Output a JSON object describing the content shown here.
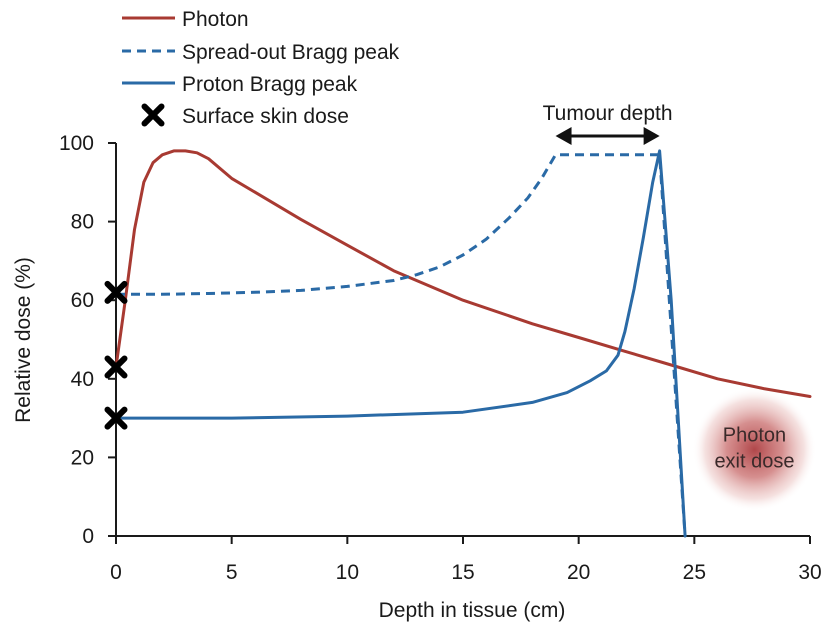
{
  "chart_data": {
    "type": "line",
    "xlabel": "Depth in tissue (cm)",
    "ylabel": "Relative dose (%)",
    "xlim": [
      0,
      30
    ],
    "ylim": [
      0,
      100
    ],
    "xticks": [
      0,
      5,
      10,
      15,
      20,
      25,
      30
    ],
    "yticks": [
      0,
      20,
      40,
      60,
      80,
      100
    ],
    "grid": false,
    "legend_position": "top-left",
    "series": [
      {
        "name": "Photon",
        "color": "#a83a32",
        "style": "solid",
        "x": [
          0,
          0.4,
          0.8,
          1.2,
          1.6,
          2.0,
          2.5,
          3.0,
          3.5,
          4.0,
          5.0,
          6.0,
          8.0,
          10.0,
          12.0,
          15.0,
          18.0,
          20.0,
          22.0,
          24.0,
          26.0,
          28.0,
          30.0
        ],
        "y": [
          43,
          60,
          78,
          90,
          95,
          97,
          98,
          98,
          97.5,
          96,
          91,
          87.5,
          80.5,
          74,
          67.5,
          60,
          54,
          50.5,
          47,
          43.5,
          40,
          37.5,
          35.5
        ]
      },
      {
        "name": "Spread-out Bragg peak",
        "color": "#2a6aa6",
        "style": "dashed",
        "x": [
          0,
          2,
          4,
          6,
          8,
          10,
          12,
          13,
          14,
          15,
          16,
          17,
          17.8,
          18.4,
          19.0,
          23.5,
          24.6
        ],
        "y": [
          61.5,
          61.5,
          61.7,
          62,
          62.5,
          63.5,
          65,
          66.5,
          68.5,
          71.5,
          75.5,
          81,
          86,
          91,
          97,
          97,
          0
        ]
      },
      {
        "name": "Proton Bragg peak",
        "color": "#2a6aa6",
        "style": "solid",
        "x": [
          0,
          5,
          10,
          15,
          18,
          19.5,
          20.5,
          21.2,
          21.7,
          22.0,
          22.4,
          22.8,
          23.2,
          23.5,
          24.0,
          24.6
        ],
        "y": [
          30,
          30,
          30.5,
          31.5,
          34,
          36.5,
          39.5,
          42,
          46,
          52,
          63,
          76,
          90,
          98,
          60,
          0
        ]
      }
    ],
    "surface_skin_dose": {
      "name": "Surface skin dose",
      "x": 0,
      "values": [
        62,
        43,
        30
      ]
    },
    "annotations": {
      "tumour_depth": {
        "label": "Tumour depth",
        "x_start": 19,
        "x_end": 23.5,
        "y": 104
      },
      "photon_exit_dose": {
        "line1": "Photon",
        "line2": "exit dose",
        "center_x": 27.6,
        "center_y": 22
      }
    }
  }
}
